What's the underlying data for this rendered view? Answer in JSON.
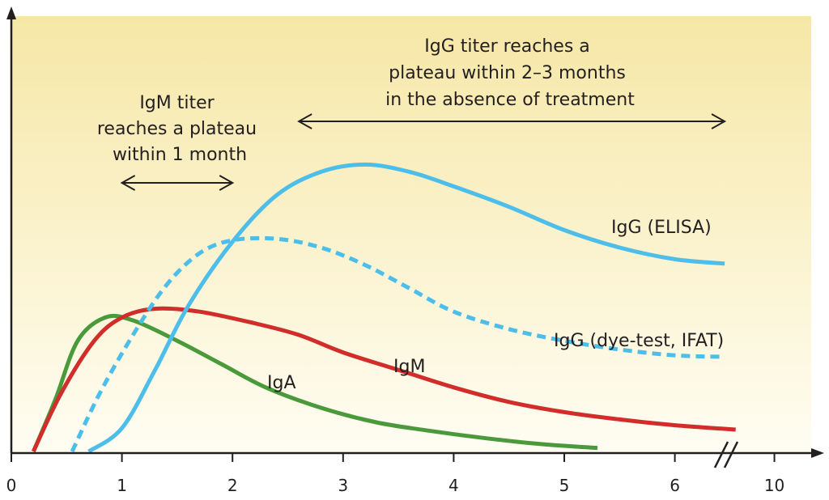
{
  "chart_data": {
    "type": "line",
    "title": "",
    "xlabel": "",
    "ylabel": "",
    "x_ticks": [
      "0",
      "1",
      "2",
      "3",
      "4",
      "5",
      "6",
      "10"
    ],
    "axis_break": "between 6 and 10",
    "grid": false,
    "background": {
      "top": "#f6e7a6",
      "bottom": "#fffdf3"
    },
    "series": [
      {
        "name": "IgG (ELISA)",
        "color": "#4dbde9",
        "style": "solid",
        "points": [
          [
            0.7,
            0
          ],
          [
            1.0,
            0.08
          ],
          [
            1.3,
            0.28
          ],
          [
            1.6,
            0.5
          ],
          [
            2.0,
            0.72
          ],
          [
            2.4,
            0.88
          ],
          [
            2.8,
            0.96
          ],
          [
            3.2,
            0.985
          ],
          [
            3.6,
            0.96
          ],
          [
            4.0,
            0.91
          ],
          [
            4.5,
            0.84
          ],
          [
            5.0,
            0.76
          ],
          [
            5.5,
            0.7
          ],
          [
            6.0,
            0.66
          ],
          [
            6.45,
            0.645
          ]
        ]
      },
      {
        "name": "IgG (dye-test, IFAT)",
        "color": "#4dbde9",
        "style": "dashed",
        "points": [
          [
            0.55,
            0
          ],
          [
            0.8,
            0.2
          ],
          [
            1.1,
            0.4
          ],
          [
            1.4,
            0.57
          ],
          [
            1.7,
            0.68
          ],
          [
            2.0,
            0.725
          ],
          [
            2.4,
            0.73
          ],
          [
            2.8,
            0.7
          ],
          [
            3.2,
            0.64
          ],
          [
            3.6,
            0.56
          ],
          [
            4.0,
            0.48
          ],
          [
            4.5,
            0.42
          ],
          [
            5.0,
            0.38
          ],
          [
            5.5,
            0.35
          ],
          [
            6.0,
            0.33
          ],
          [
            6.45,
            0.325
          ]
        ]
      },
      {
        "name": "IgM",
        "color": "#d12d2b",
        "style": "solid",
        "points": [
          [
            0.2,
            0
          ],
          [
            0.45,
            0.2
          ],
          [
            0.75,
            0.38
          ],
          [
            1.0,
            0.46
          ],
          [
            1.3,
            0.49
          ],
          [
            1.7,
            0.48
          ],
          [
            2.2,
            0.44
          ],
          [
            2.6,
            0.4
          ],
          [
            3.0,
            0.34
          ],
          [
            3.5,
            0.28
          ],
          [
            4.0,
            0.22
          ],
          [
            4.5,
            0.17
          ],
          [
            5.0,
            0.135
          ],
          [
            5.5,
            0.11
          ],
          [
            6.0,
            0.09
          ],
          [
            6.55,
            0.075
          ]
        ]
      },
      {
        "name": "IgA",
        "color": "#4a9a3c",
        "style": "solid",
        "points": [
          [
            0.2,
            0
          ],
          [
            0.4,
            0.18
          ],
          [
            0.6,
            0.38
          ],
          [
            0.85,
            0.46
          ],
          [
            1.1,
            0.45
          ],
          [
            1.5,
            0.38
          ],
          [
            1.9,
            0.3
          ],
          [
            2.3,
            0.22
          ],
          [
            2.8,
            0.15
          ],
          [
            3.3,
            0.1
          ],
          [
            3.8,
            0.07
          ],
          [
            4.3,
            0.045
          ],
          [
            4.8,
            0.025
          ],
          [
            5.3,
            0.012
          ]
        ]
      }
    ],
    "annotations": [
      {
        "lines": [
          "IgG titer reaches a",
          "plateau within 2–3 months",
          "in the absence of treatment"
        ],
        "arrow_from": 2.6,
        "arrow_to": 6.45
      },
      {
        "lines": [
          "IgM titer",
          "reaches a plateau",
          "within 1 month"
        ],
        "arrow_from": 1.0,
        "arrow_to": 2.0
      }
    ],
    "series_labels": {
      "igg_elisa": "IgG (ELISA)",
      "igg_dye": "IgG (dye-test, IFAT)",
      "igm": "IgM",
      "iga": "IgA"
    }
  }
}
